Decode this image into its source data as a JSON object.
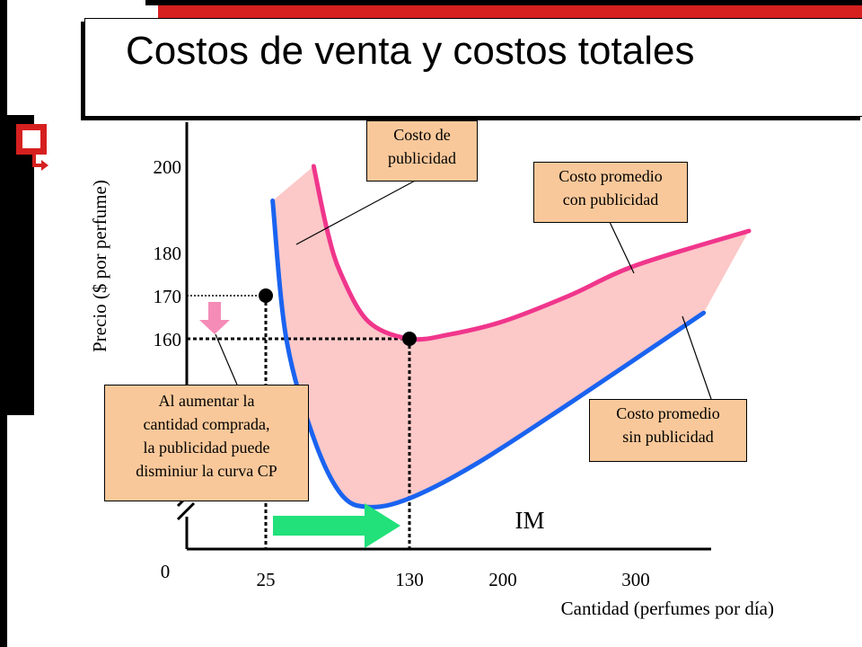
{
  "title": "Costos de venta y costos totales",
  "icons": {
    "bullet": "slide-bullet-icon"
  },
  "colors": {
    "title_accent": "#d62020",
    "curve_with_ads": "#f0368c",
    "curve_without_ads": "#1a63f0",
    "shaded_area": "#fcc8c8",
    "callout_fill": "#f9c89a",
    "arrow_down": "#f58cb8",
    "arrow_right": "#22e07a"
  },
  "chart_data": {
    "type": "line",
    "xlabel": "Cantidad (perfumes por día)",
    "ylabel": "Precio ($ por perfume)",
    "x_ticks": [
      0,
      25,
      130,
      200,
      300
    ],
    "y_ticks": [
      160,
      170,
      180,
      200
    ],
    "y_axis_break": true,
    "series": [
      {
        "name": "Costo promedio con publicidad",
        "x": [
          60,
          70,
          80,
          100,
          130,
          160,
          200,
          250,
          300,
          350
        ],
        "y": [
          200,
          185,
          175,
          164,
          160,
          161,
          164,
          170,
          177,
          185
        ]
      },
      {
        "name": "Costo promedio sin publicidad",
        "x": [
          30,
          40,
          60,
          80,
          100,
          130,
          180,
          250,
          330
        ],
        "y": [
          192,
          160,
          137,
          124,
          121,
          123,
          131,
          145,
          166
        ]
      }
    ],
    "shaded_region": "Costo de publicidad",
    "points": [
      {
        "x": 25,
        "y": 170
      },
      {
        "x": 130,
        "y": 160
      }
    ],
    "annotations": {
      "ad_cost": "Costo de publicidad",
      "avg_with_ads": "Costo promedio con publicidad",
      "avg_without_ads": "Costo promedio sin publicidad",
      "note": "Al aumentar la cantidad comprada, la publicidad puede disminiur la curva CP",
      "note_lines": [
        "Al aumentar la",
        "cantidad comprada,",
        "la publicidad puede",
        "disminiur la curva CP"
      ],
      "im": "IM"
    }
  },
  "labels": {
    "ad_cost_lines": [
      "Costo de",
      "publicidad"
    ],
    "with_ads_lines": [
      "Costo promedio",
      "con publicidad"
    ],
    "without_ads_lines": [
      "Costo promedio",
      "sin publicidad"
    ]
  }
}
